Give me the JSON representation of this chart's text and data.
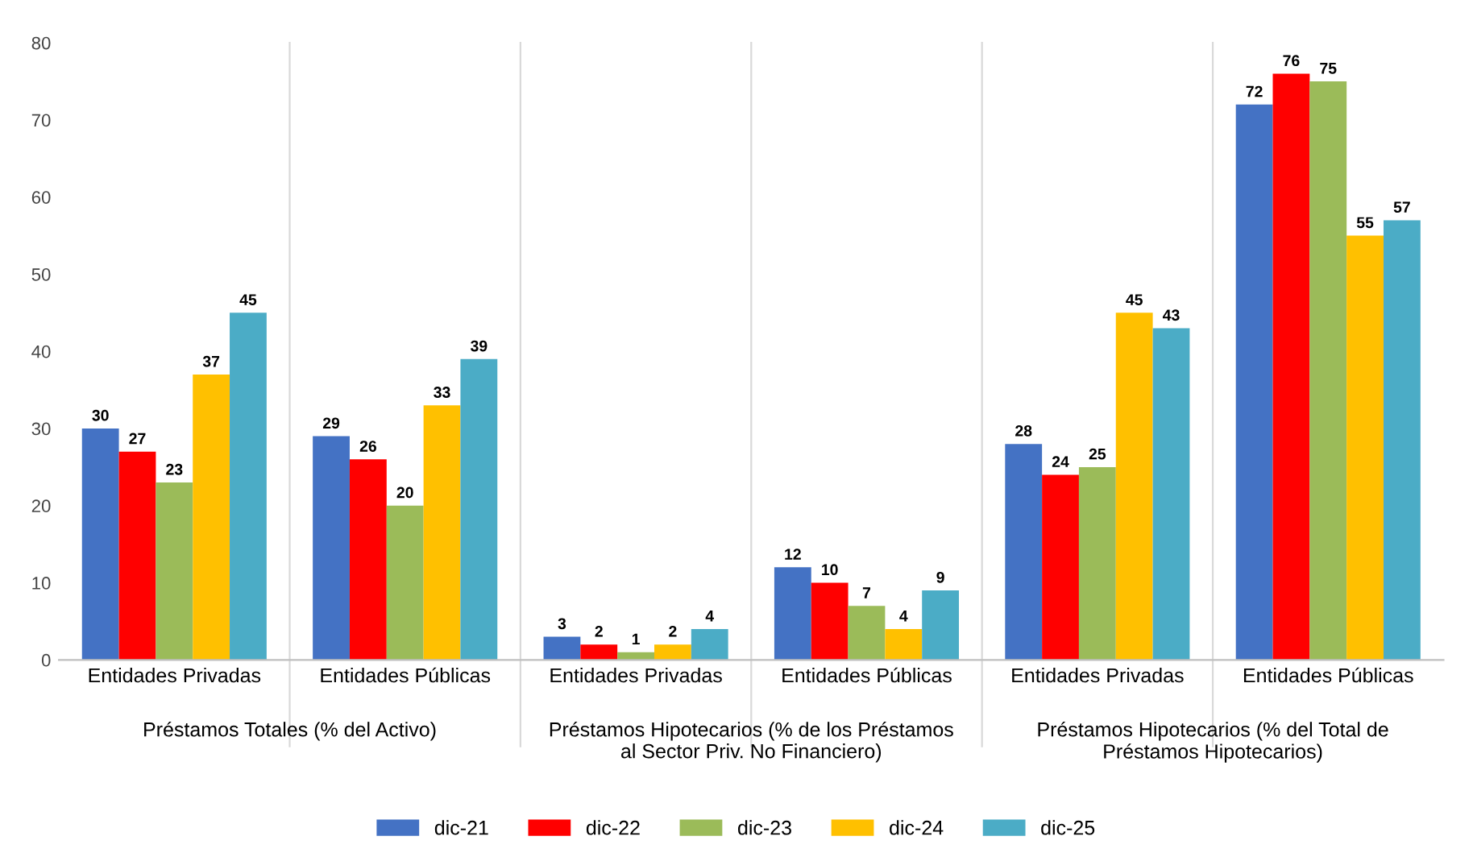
{
  "chart_data": {
    "type": "bar",
    "categories": [
      "Entidades Privadas",
      "Entidades Públicas",
      "Entidades Privadas",
      "Entidades Públicas",
      "Entidades Privadas",
      "Entidades Públicas"
    ],
    "series": [
      {
        "name": "dic-21",
        "color": "#4472c4",
        "values": [
          30,
          29,
          3,
          12,
          28,
          72
        ]
      },
      {
        "name": "dic-22",
        "color": "#ff0000",
        "values": [
          27,
          26,
          2,
          10,
          24,
          76
        ]
      },
      {
        "name": "dic-23",
        "color": "#9bbb59",
        "values": [
          23,
          20,
          1,
          7,
          25,
          75
        ]
      },
      {
        "name": "dic-24",
        "color": "#ffc000",
        "values": [
          37,
          33,
          2,
          4,
          45,
          55
        ]
      },
      {
        "name": "dic-25",
        "color": "#4bacc6",
        "values": [
          45,
          39,
          4,
          9,
          43,
          57
        ]
      }
    ],
    "annotations": [
      "Préstamos Totales (% del Activo)",
      "Préstamos Hipotecarios (% de los Préstamos al Sector Priv. No Financiero)",
      "Préstamos Hipotecarios (% del Total de Préstamos Hipotecarios)"
    ],
    "ylim": [
      0,
      80
    ],
    "yticks": [
      0,
      10,
      20,
      30,
      40,
      50,
      60,
      70,
      80
    ],
    "data_labels": true,
    "legend": "bottom",
    "grid": false
  }
}
